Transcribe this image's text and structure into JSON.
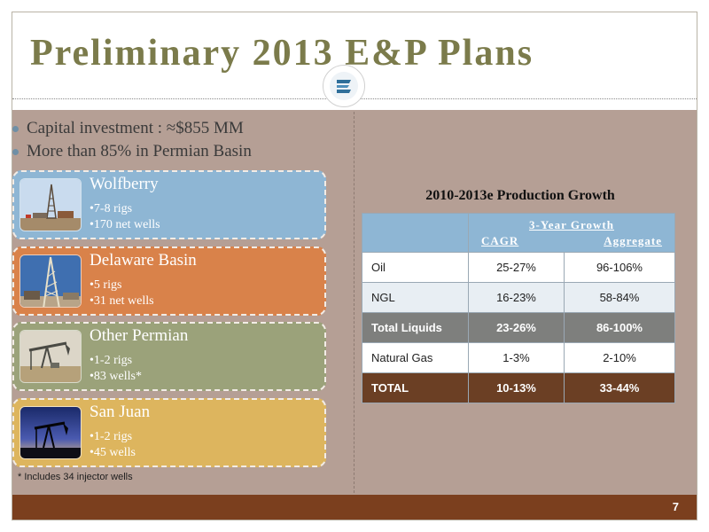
{
  "slide": {
    "title": "Preliminary 2013 E&P Plans",
    "page_number": "7",
    "colors": {
      "title": "#7b7b4b",
      "body": "#b59f95",
      "footer": "#7b3f1e"
    }
  },
  "logo": {
    "icon": "company-logo-icon"
  },
  "bullets": [
    "Capital investment : ≈$855 MM",
    "More than 85% in Permian Basin"
  ],
  "cards": [
    {
      "name": "Wolfberry",
      "details": [
        "7-8 rigs",
        "170 net wells"
      ],
      "image": "drilling-rig-photo",
      "color": "#8eb6d4"
    },
    {
      "name": "Delaware Basin",
      "details": [
        "5 rigs",
        "31 net wells"
      ],
      "image": "drilling-rig-closeup-photo",
      "color": "#d9824a"
    },
    {
      "name": "Other Permian",
      "details": [
        "1-2 rigs",
        "83 wells*"
      ],
      "image": "pumpjack-photo",
      "color": "#9ba27a"
    },
    {
      "name": "San Juan",
      "details": [
        "1-2 rigs",
        "45 wells"
      ],
      "image": "pumpjack-sunset-photo",
      "color": "#ddb55e"
    }
  ],
  "footnote": "* Includes 34 injector wells",
  "production_table": {
    "title": "2010-2013e Production Growth",
    "header_group": "3-Year Growth",
    "columns": [
      "CAGR",
      "Aggregate"
    ],
    "rows": [
      {
        "label": "Oil",
        "cagr": "25-27%",
        "aggregate": "96-106%"
      },
      {
        "label": "NGL",
        "cagr": "16-23%",
        "aggregate": "58-84%"
      },
      {
        "label": "Total Liquids",
        "cagr": "23-26%",
        "aggregate": "86-100%"
      },
      {
        "label": "Natural Gas",
        "cagr": "1-3%",
        "aggregate": "2-10%"
      },
      {
        "label": "TOTAL",
        "cagr": "10-13%",
        "aggregate": "33-44%"
      }
    ]
  }
}
